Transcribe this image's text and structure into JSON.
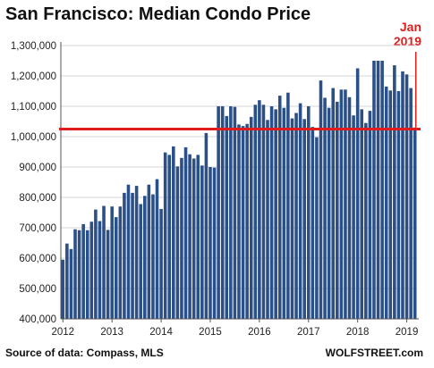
{
  "chart_data": {
    "type": "bar",
    "title": "San Francisco: Median Condo Price",
    "xlabel": "",
    "ylabel": "",
    "ylim": [
      400000,
      1300000
    ],
    "yticks": [
      "400,000",
      "500,000",
      "600,000",
      "700,000",
      "800,000",
      "900,000",
      "1,000,000",
      "1,100,000",
      "1,200,000",
      "1,300,000"
    ],
    "ytick_values": [
      400000,
      500000,
      600000,
      700000,
      800000,
      900000,
      1000000,
      1100000,
      1200000,
      1300000
    ],
    "xticks": [
      "2012",
      "2013",
      "2014",
      "2015",
      "2016",
      "2017",
      "2018",
      "2019"
    ],
    "grid": "horizontal",
    "bar_color": "#2b4f87",
    "reference_line": {
      "value": 1025000,
      "color": "#e01c1c"
    },
    "annotation_lines": [
      "Jan",
      "2019"
    ],
    "annotation_color": "#d9201f",
    "source": "Source of data: Compass, MLS",
    "brand": "WOLFSTREET.com",
    "series": [
      {
        "values": [
          595000,
          648000,
          630000,
          695000,
          692000,
          712000,
          692000,
          720000,
          760000,
          722000,
          772000,
          693000,
          770000,
          735000,
          770000,
          815000,
          842000,
          815000,
          838000,
          778000,
          805000,
          842000,
          810000,
          860000,
          762000,
          948000,
          940000,
          968000,
          902000,
          930000,
          965000,
          942000,
          928000,
          940000,
          905000,
          1012000,
          900000,
          898000,
          1100000,
          1100000,
          1068000,
          1100000,
          1098000,
          1040000,
          1035000,
          1042000,
          1065000,
          1105000,
          1120000,
          1105000,
          1055000,
          1100000,
          1090000,
          1135000,
          1095000,
          1145000,
          1060000,
          1078000,
          1110000,
          1058000,
          1100000,
          1032000,
          998000,
          1185000,
          1128000,
          1095000,
          1160000,
          1115000,
          1155000,
          1155000,
          1130000,
          1070000,
          1225000,
          1090000,
          1045000,
          1085000,
          1250000,
          1250000,
          1250000,
          1165000,
          1152000,
          1235000,
          1150000,
          1215000,
          1205000,
          1160000,
          1030000
        ]
      }
    ]
  }
}
